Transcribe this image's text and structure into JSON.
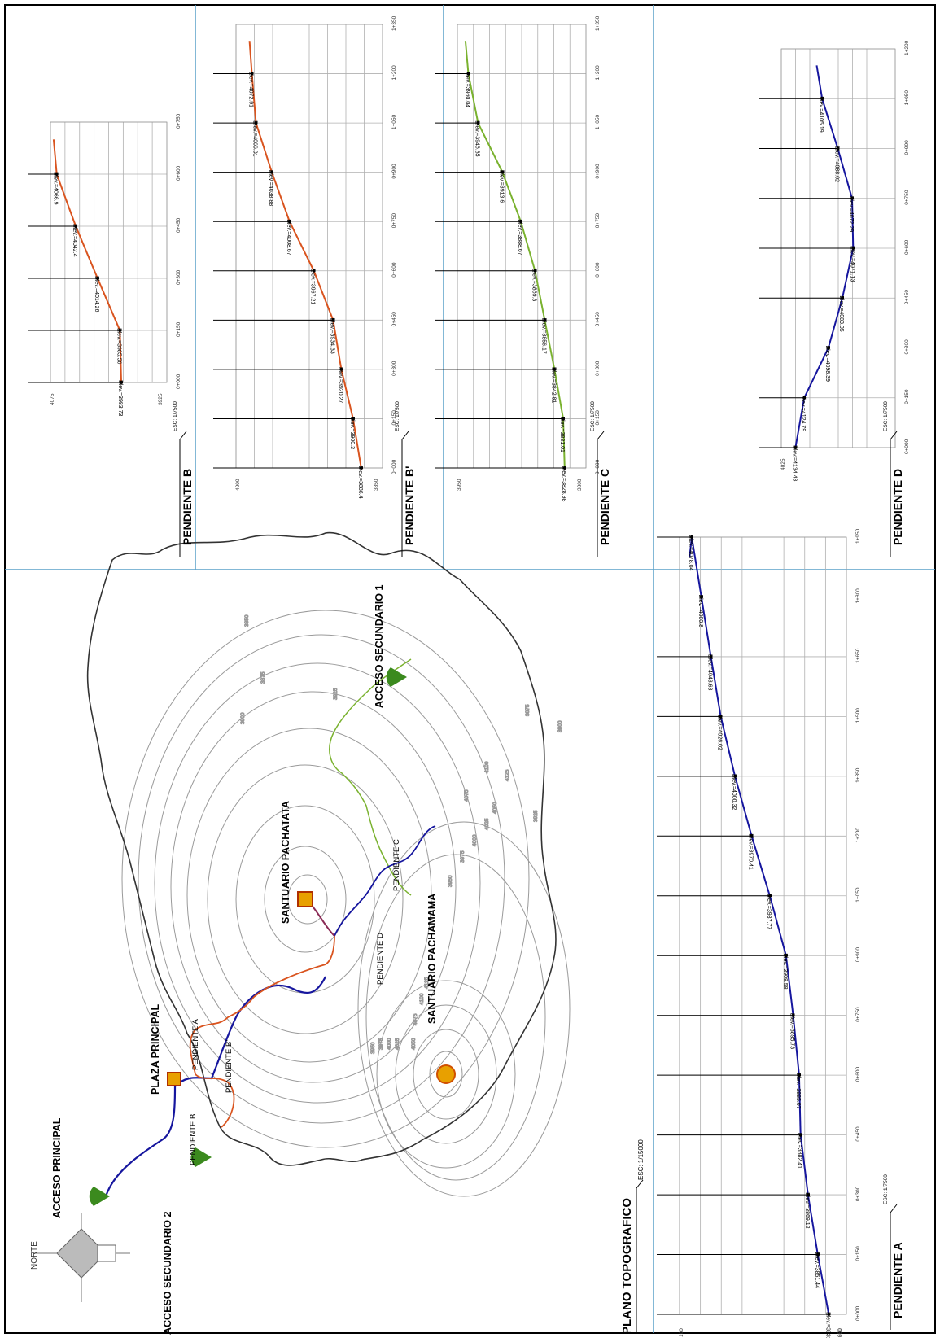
{
  "sheet": {
    "colors": {
      "frame": "#000000",
      "divider": "#5aa0c8",
      "grid": "#b0b0b0",
      "contour": "#9a9a9a",
      "outline": "#333333",
      "orange": "#d9541f",
      "green": "#7ab22f",
      "blue": "#16169e",
      "maroon": "#8a2a55",
      "marker": "#e8a000"
    }
  },
  "map": {
    "title": "PLANO TOPOGRAFICO",
    "scale": "ESC: 1/15000",
    "north": "NORTE",
    "labels": {
      "acceso_principal": "ACCESO PRINCIPAL",
      "acceso_secundario_2": "ACCESO SECUNDARIO 2",
      "acceso_secundario_1": "ACCESO SECUNDARIO 1",
      "plaza_principal": "PLAZA PRINCIPAL",
      "santuario_pachatata": "SANTUARIO PACHATATA",
      "santuario_pachamama": "SANTUARIO PACHAMAMA",
      "pendiente_a": "PENDIENTE A",
      "pendiente_b": "PENDIENTE B",
      "pendiente_b2": "PENDIENTE B'",
      "pendiente_c": "PENDIENTE C",
      "pendiente_d": "PENDIENTE D"
    },
    "contour_values": [
      "3850",
      "3875",
      "3900",
      "3925",
      "3950",
      "3975",
      "4000",
      "4025",
      "4050",
      "4075",
      "4100",
      "4125",
      "3950",
      "3975",
      "4000",
      "4025",
      "4050",
      "4075",
      "4100",
      "4125",
      "3875",
      "3900",
      "3925"
    ]
  },
  "profiles": [
    {
      "id": "b",
      "title": "PENDIENTE B",
      "scale": "ESC: 1/7500",
      "color": "#d9541f",
      "x": [
        "0+000",
        "0+150",
        "0+300",
        "0+450",
        "0+600",
        "0+750"
      ],
      "ylabels": [
        "4075",
        "3925"
      ],
      "elev": [
        {
          "ch": 0,
          "label": "Elev.=3983.73"
        },
        {
          "ch": 150,
          "label": "Elev.=3985.56"
        },
        {
          "ch": 300,
          "label": "Elev.=4014.26"
        },
        {
          "ch": 450,
          "label": "Elev.=4042.4"
        },
        {
          "ch": 600,
          "label": "Elev.=4066.9"
        }
      ]
    },
    {
      "id": "b2",
      "title": "PENDIENTE B'",
      "scale": "ESC: 1/7500",
      "color": "#d9541f",
      "x": [
        "0+000",
        "0+150",
        "0+300",
        "0+450",
        "0+600",
        "0+750",
        "0+900",
        "1+050",
        "1+200",
        "1+350"
      ],
      "ylabels": [
        "4000",
        "3850"
      ],
      "elev": [
        {
          "ch": 0,
          "label": "Elev.=3886.4"
        },
        {
          "ch": 150,
          "label": "Elev.=3900.3"
        },
        {
          "ch": 300,
          "label": "Elev.=3920.27"
        },
        {
          "ch": 450,
          "label": "Elev.=3934.33"
        },
        {
          "ch": 600,
          "label": "Elev.=3967.21"
        },
        {
          "ch": 750,
          "label": "Elev.=4008.67"
        },
        {
          "ch": 900,
          "label": "Elev.=4038.88"
        },
        {
          "ch": 1050,
          "label": "Elev.=4066.01"
        },
        {
          "ch": 1200,
          "label": "Elev.=4072.91"
        }
      ]
    },
    {
      "id": "c",
      "title": "PENDIENTE C",
      "scale": "ESC: 1/7500",
      "color": "#7ab22f",
      "x": [
        "0+000",
        "0+150",
        "0+300",
        "0+450",
        "0+600",
        "0+750",
        "0+900",
        "1+050",
        "1+200",
        "1+350"
      ],
      "ylabels": [
        "3950",
        "3800"
      ],
      "elev": [
        {
          "ch": 0,
          "label": "Elev.=3828.98"
        },
        {
          "ch": 150,
          "label": "Elev.=3831.01"
        },
        {
          "ch": 300,
          "label": "Elev.=3842.81"
        },
        {
          "ch": 450,
          "label": "Elev.=3856.17"
        },
        {
          "ch": 600,
          "label": "Elev.=3869.3"
        },
        {
          "ch": 750,
          "label": "Elev.=3888.67"
        },
        {
          "ch": 900,
          "label": "Elev.=3913.6"
        },
        {
          "ch": 1050,
          "label": "Elev.=3946.85"
        },
        {
          "ch": 1200,
          "label": "Elev.=3960.04"
        }
      ]
    },
    {
      "id": "d",
      "title": "PENDIENTE D",
      "scale": "ESC: 1/7500",
      "color": "#16169e",
      "x": [
        "0+000",
        "0+150",
        "0+300",
        "0+450",
        "0+600",
        "0+750",
        "0+900",
        "1+050",
        "1+200"
      ],
      "ylabels": [
        "4025"
      ],
      "elev": [
        {
          "ch": 0,
          "label": "Elev.=4134.48"
        },
        {
          "ch": 150,
          "label": "Elev.=4124.79"
        },
        {
          "ch": 300,
          "label": "Elev.=4098.39"
        },
        {
          "ch": 450,
          "label": "Elev.=4083.05"
        },
        {
          "ch": 600,
          "label": "Elev.=4071.13"
        },
        {
          "ch": 750,
          "label": "Elev.=4072.29"
        },
        {
          "ch": 900,
          "label": "Elev.=4088.02"
        },
        {
          "ch": 1050,
          "label": "Elev.=4105.19"
        }
      ]
    },
    {
      "id": "a",
      "title": "PENDIENTE A",
      "scale": "ESC: 1/7500",
      "color": "#16169e",
      "x": [
        "0+000",
        "0+150",
        "0+300",
        "0+450",
        "0+600",
        "0+750",
        "0+900",
        "1+050",
        "1+200",
        "1+350",
        "1+500",
        "1+650",
        "1+800",
        "1+950"
      ],
      "ylabels": [
        "100",
        "950",
        "800"
      ],
      "elev": [
        {
          "ch": 0,
          "label": "Elev.=3831.74"
        },
        {
          "ch": 150,
          "label": "Elev.=3851.44"
        },
        {
          "ch": 300,
          "label": "Elev.=3869.12"
        },
        {
          "ch": 450,
          "label": "Elev.=3882.41"
        },
        {
          "ch": 600,
          "label": "Elev.=3885.07"
        },
        {
          "ch": 750,
          "label": "Elev.=3895.73"
        },
        {
          "ch": 900,
          "label": "Elev.=3908.58"
        },
        {
          "ch": 1050,
          "label": "Elev.=3937.77"
        },
        {
          "ch": 1200,
          "label": "Elev.=3970.41"
        },
        {
          "ch": 1350,
          "label": "Elev.=4000.32"
        },
        {
          "ch": 1500,
          "label": "Elev.=4026.02"
        },
        {
          "ch": 1650,
          "label": "Elev.=4043.63"
        },
        {
          "ch": 1800,
          "label": "Elev.=4060.8"
        },
        {
          "ch": 1950,
          "label": "Elev.=4078.04"
        }
      ]
    }
  ]
}
